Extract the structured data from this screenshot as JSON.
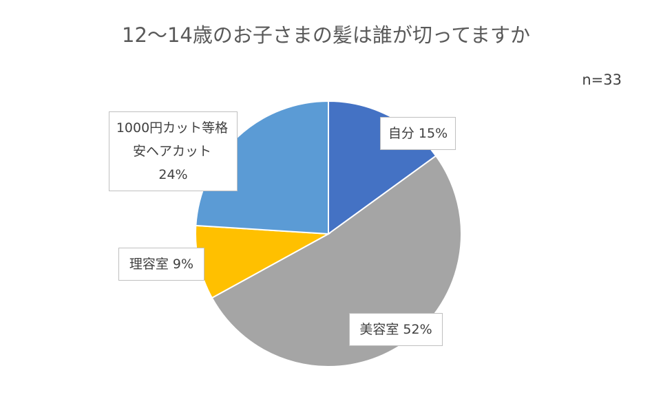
{
  "chart_data": {
    "type": "pie",
    "title": "12～14歳のお子さまの髪は誰が切ってますか",
    "annotation": "n=33",
    "categories": [
      "自分",
      "美容室",
      "理容室",
      "1000円カット等格安ヘアカット"
    ],
    "values": [
      15,
      52,
      9,
      24
    ],
    "value_labels": [
      "15%",
      "52%",
      "9%",
      "24%"
    ],
    "colors": [
      "#4472c4",
      "#a5a5a5",
      "#ffc000",
      "#5b9bd5"
    ]
  }
}
